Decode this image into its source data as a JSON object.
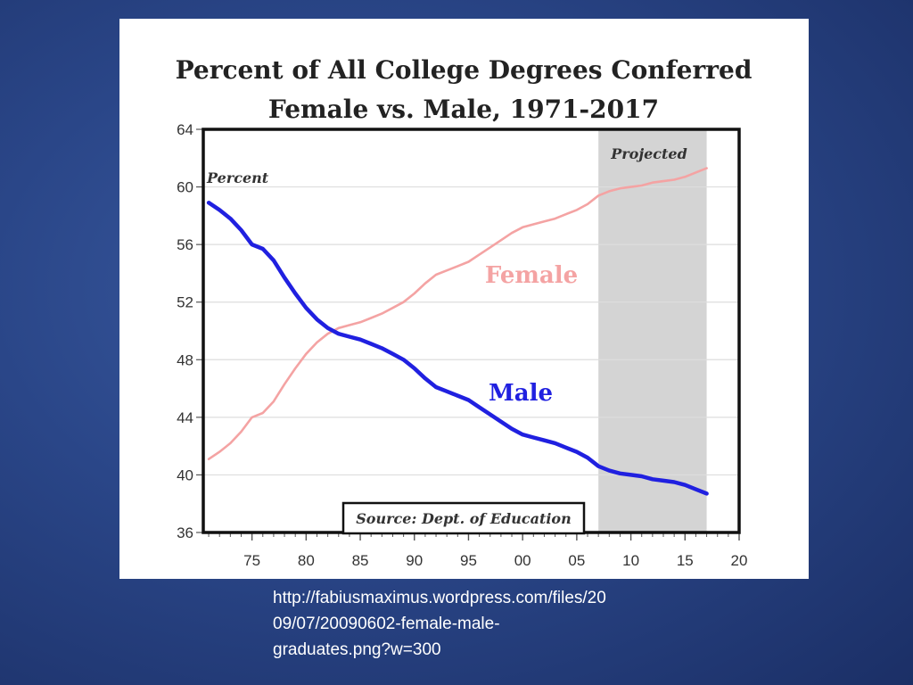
{
  "chart_data": {
    "type": "line",
    "title": "Percent of All College Degrees Conferred",
    "subtitle": "Female vs. Male, 1971-2017",
    "ylabel": "Percent",
    "ylim": [
      36,
      64
    ],
    "xlim": [
      1971,
      2020
    ],
    "y_ticks": [
      "64",
      "60",
      "56",
      "52",
      "48",
      "44",
      "40",
      "36"
    ],
    "x_ticks": [
      "75",
      "80",
      "85",
      "90",
      "95",
      "00",
      "05",
      "10",
      "15",
      "20"
    ],
    "grid": true,
    "projected_range": [
      2007,
      2017
    ],
    "projected_label": "Projected",
    "source_note": "Source: Dept. of Education",
    "x": [
      1971,
      1972,
      1973,
      1974,
      1975,
      1976,
      1977,
      1978,
      1979,
      1980,
      1981,
      1982,
      1983,
      1984,
      1985,
      1986,
      1987,
      1988,
      1989,
      1990,
      1991,
      1992,
      1993,
      1994,
      1995,
      1996,
      1997,
      1998,
      1999,
      2000,
      2001,
      2002,
      2003,
      2004,
      2005,
      2006,
      2007,
      2008,
      2009,
      2010,
      2011,
      2012,
      2013,
      2014,
      2015,
      2016,
      2017
    ],
    "series": [
      {
        "name": "Female",
        "color": "#f4a3a3",
        "values": [
          41.1,
          41.6,
          42.2,
          43.0,
          44.0,
          44.3,
          45.1,
          46.3,
          47.4,
          48.4,
          49.2,
          49.8,
          50.2,
          50.4,
          50.6,
          50.9,
          51.2,
          51.6,
          52.0,
          52.6,
          53.3,
          53.9,
          54.2,
          54.5,
          54.8,
          55.3,
          55.8,
          56.3,
          56.8,
          57.2,
          57.4,
          57.6,
          57.8,
          58.1,
          58.4,
          58.8,
          59.4,
          59.7,
          59.9,
          60.0,
          60.1,
          60.3,
          60.4,
          60.5,
          60.7,
          61.0,
          61.3
        ]
      },
      {
        "name": "Male",
        "color": "#2020e0",
        "values": [
          58.9,
          58.4,
          57.8,
          57.0,
          56.0,
          55.7,
          54.9,
          53.7,
          52.6,
          51.6,
          50.8,
          50.2,
          49.8,
          49.6,
          49.4,
          49.1,
          48.8,
          48.4,
          48.0,
          47.4,
          46.7,
          46.1,
          45.8,
          45.5,
          45.2,
          44.7,
          44.2,
          43.7,
          43.2,
          42.8,
          42.6,
          42.4,
          42.2,
          41.9,
          41.6,
          41.2,
          40.6,
          40.3,
          40.1,
          40.0,
          39.9,
          39.7,
          39.6,
          39.5,
          39.3,
          39.0,
          38.7
        ]
      }
    ]
  },
  "caption": {
    "line1": "http://fabiusmaximus.wordpress.com/files/20",
    "line2": "09/07/20090602-female-male-",
    "line3": "graduates.png?w=300"
  }
}
